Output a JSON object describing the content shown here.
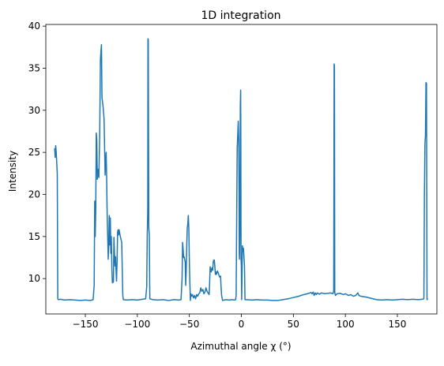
{
  "chart_data": {
    "type": "line",
    "title": "1D integration",
    "xlabel": "Azimuthal angle χ (°)",
    "ylabel": "Intensity",
    "xlim": [
      -188,
      188
    ],
    "ylim": [
      5.8,
      40.2
    ],
    "grid": false,
    "x_ticks": [
      -150,
      -100,
      -50,
      0,
      50,
      100,
      150
    ],
    "x_tick_labels": [
      "−150",
      "−100",
      "−50",
      "0",
      "50",
      "100",
      "150"
    ],
    "y_ticks": [
      10,
      15,
      20,
      25,
      30,
      35,
      40
    ],
    "y_tick_labels": [
      "10",
      "15",
      "20",
      "25",
      "30",
      "35",
      "40"
    ],
    "series": [
      {
        "color": "#1f77b4",
        "points": [
          [
            -179.5,
            25.5
          ],
          [
            -179,
            24.4
          ],
          [
            -178.5,
            25.8
          ],
          [
            -178,
            25.0
          ],
          [
            -177,
            22.5
          ],
          [
            -176.5,
            7.6
          ],
          [
            -176,
            7.5
          ],
          [
            -174,
            7.55
          ],
          [
            -170,
            7.45
          ],
          [
            -165,
            7.5
          ],
          [
            -160,
            7.45
          ],
          [
            -155,
            7.4
          ],
          [
            -150,
            7.45
          ],
          [
            -145,
            7.4
          ],
          [
            -142.5,
            7.5
          ],
          [
            -141.5,
            9.2
          ],
          [
            -141,
            19.2
          ],
          [
            -140.5,
            15.0
          ],
          [
            -140,
            18.0
          ],
          [
            -139.5,
            27.3
          ],
          [
            -139,
            26.5
          ],
          [
            -138.5,
            21.8
          ],
          [
            -138,
            23.0
          ],
          [
            -137,
            22.0
          ],
          [
            -136.2,
            27.0
          ],
          [
            -135.5,
            36.0
          ],
          [
            -135,
            37.0
          ],
          [
            -134.5,
            37.8
          ],
          [
            -134,
            31.5
          ],
          [
            -133,
            30.5
          ],
          [
            -132,
            29.0
          ],
          [
            -131,
            22.3
          ],
          [
            -130.5,
            24.0
          ],
          [
            -130,
            25.0
          ],
          [
            -129.5,
            22.0
          ],
          [
            -129,
            17.5
          ],
          [
            -128.5,
            15.0
          ],
          [
            -128,
            12.3
          ],
          [
            -127.5,
            14.0
          ],
          [
            -127,
            17.5
          ],
          [
            -126.5,
            14.0
          ],
          [
            -126,
            17.2
          ],
          [
            -125.5,
            13.0
          ],
          [
            -125,
            15.0
          ],
          [
            -124.5,
            11.2
          ],
          [
            -124,
            9.5
          ],
          [
            -123,
            9.6
          ],
          [
            -122.5,
            14.9
          ],
          [
            -122,
            13.0
          ],
          [
            -121.5,
            11.5
          ],
          [
            -121,
            12.6
          ],
          [
            -120.5,
            11.0
          ],
          [
            -120,
            9.7
          ],
          [
            -119.5,
            12.0
          ],
          [
            -119,
            15.5
          ],
          [
            -118.5,
            15.8
          ],
          [
            -118,
            15.2
          ],
          [
            -117.5,
            15.8
          ],
          [
            -117,
            15.4
          ],
          [
            -116,
            14.8
          ],
          [
            -115,
            14.3
          ],
          [
            -114.5,
            11.0
          ],
          [
            -114,
            8.0
          ],
          [
            -113.5,
            7.5
          ],
          [
            -110,
            7.45
          ],
          [
            -105,
            7.5
          ],
          [
            -100,
            7.45
          ],
          [
            -95,
            7.55
          ],
          [
            -92,
            7.6
          ],
          [
            -91,
            9.0
          ],
          [
            -90.5,
            15.0
          ],
          [
            -90,
            18.0
          ],
          [
            -89.8,
            38.5
          ],
          [
            -89.5,
            38.4
          ],
          [
            -89,
            16.0
          ],
          [
            -88.5,
            15.2
          ],
          [
            -88,
            7.6
          ],
          [
            -85,
            7.5
          ],
          [
            -80,
            7.45
          ],
          [
            -75,
            7.5
          ],
          [
            -70,
            7.4
          ],
          [
            -65,
            7.5
          ],
          [
            -60,
            7.45
          ],
          [
            -58,
            7.5
          ],
          [
            -57,
            10.0
          ],
          [
            -56.5,
            14.3
          ],
          [
            -56,
            13.5
          ],
          [
            -55.5,
            12.5
          ],
          [
            -55,
            12.6
          ],
          [
            -54,
            12.0
          ],
          [
            -53.5,
            9.2
          ],
          [
            -53,
            11.0
          ],
          [
            -52.5,
            14.0
          ],
          [
            -52,
            16.0
          ],
          [
            -51.5,
            16.5
          ],
          [
            -51,
            17.5
          ],
          [
            -50.5,
            16.0
          ],
          [
            -50,
            12.0
          ],
          [
            -49.5,
            9.5
          ],
          [
            -49,
            7.4
          ],
          [
            -48.5,
            8.2
          ],
          [
            -48,
            7.9
          ],
          [
            -47,
            8.1
          ],
          [
            -46,
            7.7
          ],
          [
            -45,
            8.0
          ],
          [
            -44,
            7.6
          ],
          [
            -43,
            8.1
          ],
          [
            -42,
            7.9
          ],
          [
            -41,
            8.2
          ],
          [
            -40,
            8.3
          ],
          [
            -39,
            8.9
          ],
          [
            -38,
            8.5
          ],
          [
            -37,
            8.7
          ],
          [
            -36,
            8.2
          ],
          [
            -35,
            8.4
          ],
          [
            -34,
            8.9
          ],
          [
            -33,
            8.5
          ],
          [
            -32,
            8.3
          ],
          [
            -31,
            8.1
          ],
          [
            -30.5,
            9.5
          ],
          [
            -30,
            11.4
          ],
          [
            -29.5,
            11.2
          ],
          [
            -29,
            10.8
          ],
          [
            -28,
            11.3
          ],
          [
            -27.5,
            11.0
          ],
          [
            -27,
            12.0
          ],
          [
            -26.5,
            12.2
          ],
          [
            -26,
            12.2
          ],
          [
            -25.5,
            11.5
          ],
          [
            -25,
            10.5
          ],
          [
            -24.5,
            10.8
          ],
          [
            -24,
            10.5
          ],
          [
            -23,
            10.9
          ],
          [
            -22,
            10.6
          ],
          [
            -21,
            10.2
          ],
          [
            -20,
            10.3
          ],
          [
            -19.5,
            9.0
          ],
          [
            -19,
            8.0
          ],
          [
            -18,
            7.4
          ],
          [
            -15,
            7.5
          ],
          [
            -12,
            7.45
          ],
          [
            -9,
            7.5
          ],
          [
            -7,
            7.45
          ],
          [
            -5.5,
            7.5
          ],
          [
            -5,
            8.0
          ],
          [
            -4.5,
            17.0
          ],
          [
            -4,
            25.5
          ],
          [
            -3.5,
            27.0
          ],
          [
            -3,
            28.7
          ],
          [
            -2.5,
            26.5
          ],
          [
            -2.2,
            20.0
          ],
          [
            -2,
            13.0
          ],
          [
            -1.8,
            12.3
          ],
          [
            -1.5,
            15.0
          ],
          [
            -1.2,
            20.0
          ],
          [
            -1,
            30.5
          ],
          [
            -0.7,
            32.4
          ],
          [
            -0.5,
            27.0
          ],
          [
            -0.3,
            12.4
          ],
          [
            0,
            11.5
          ],
          [
            0.3,
            7.5
          ],
          [
            0.6,
            10.0
          ],
          [
            1,
            13.9
          ],
          [
            1.5,
            13.3
          ],
          [
            2,
            13.6
          ],
          [
            2.5,
            12.6
          ],
          [
            3,
            11.5
          ],
          [
            3.5,
            7.5
          ],
          [
            5,
            7.5
          ],
          [
            10,
            7.45
          ],
          [
            15,
            7.5
          ],
          [
            20,
            7.45
          ],
          [
            25,
            7.45
          ],
          [
            30,
            7.4
          ],
          [
            35,
            7.4
          ],
          [
            40,
            7.5
          ],
          [
            45,
            7.6
          ],
          [
            50,
            7.75
          ],
          [
            55,
            7.9
          ],
          [
            60,
            8.1
          ],
          [
            65,
            8.25
          ],
          [
            67,
            8.35
          ],
          [
            68,
            8.2
          ],
          [
            69,
            8.4
          ],
          [
            70,
            8.0
          ],
          [
            71,
            8.3
          ],
          [
            72,
            8.1
          ],
          [
            73,
            8.3
          ],
          [
            75,
            8.15
          ],
          [
            77,
            8.3
          ],
          [
            80,
            8.2
          ],
          [
            83,
            8.25
          ],
          [
            86,
            8.3
          ],
          [
            88,
            8.2
          ],
          [
            88.8,
            8.5
          ],
          [
            89.2,
            35.5
          ],
          [
            89.5,
            35.3
          ],
          [
            89.8,
            8.3
          ],
          [
            90.5,
            8.0
          ],
          [
            92,
            8.2
          ],
          [
            95,
            8.25
          ],
          [
            98,
            8.1
          ],
          [
            100,
            8.2
          ],
          [
            103,
            8.0
          ],
          [
            105,
            8.1
          ],
          [
            108,
            7.9
          ],
          [
            110,
            8.0
          ],
          [
            112,
            8.3
          ],
          [
            113,
            8.0
          ],
          [
            115,
            7.9
          ],
          [
            120,
            7.8
          ],
          [
            125,
            7.65
          ],
          [
            130,
            7.5
          ],
          [
            135,
            7.45
          ],
          [
            140,
            7.5
          ],
          [
            145,
            7.45
          ],
          [
            150,
            7.5
          ],
          [
            155,
            7.55
          ],
          [
            160,
            7.5
          ],
          [
            165,
            7.55
          ],
          [
            170,
            7.5
          ],
          [
            174,
            7.55
          ],
          [
            175.5,
            7.6
          ],
          [
            176,
            20.0
          ],
          [
            176.5,
            26.0
          ],
          [
            177,
            27.0
          ],
          [
            177.5,
            33.3
          ],
          [
            178,
            33.2
          ],
          [
            178.5,
            7.5
          ],
          [
            179.3,
            7.6
          ]
        ]
      }
    ]
  }
}
